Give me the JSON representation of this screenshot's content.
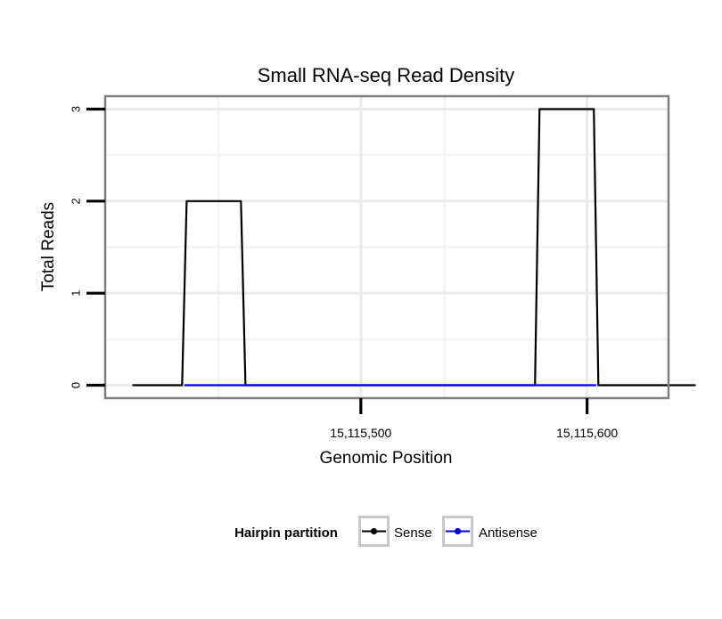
{
  "chart_data": {
    "type": "line",
    "title": "Small RNA-seq Read Density",
    "xlabel": "Genomic Position",
    "ylabel": "Total Reads",
    "xlim": [
      15115387,
      15115636
    ],
    "ylim": [
      -0.14,
      3.14
    ],
    "x_ticks": [
      {
        "value": 15115500,
        "label": "15,115,500"
      },
      {
        "value": 15115600,
        "label": "15,115,600"
      }
    ],
    "y_ticks": [
      {
        "value": 0,
        "label": "0"
      },
      {
        "value": 1,
        "label": "1"
      },
      {
        "value": 2,
        "label": "2"
      },
      {
        "value": 3,
        "label": "3"
      }
    ],
    "x_minor_gridlines": [
      15115437,
      15115537,
      15115637
    ],
    "y_minor_gridlines": [
      0.5,
      1.5,
      2.5
    ],
    "grid": true,
    "legend": {
      "title": "Hairpin partition",
      "position": "bottom",
      "entries": [
        {
          "name": "Sense",
          "color": "#000000"
        },
        {
          "name": "Antisense",
          "color": "#0000ff"
        }
      ]
    },
    "series": [
      {
        "name": "Sense",
        "color": "#000000",
        "x": [
          15115399,
          15115421,
          15115423,
          15115447,
          15115449,
          15115577,
          15115579,
          15115603,
          15115605,
          15115648
        ],
        "y": [
          0,
          0,
          2,
          2,
          0,
          0,
          3,
          3,
          0,
          0
        ]
      },
      {
        "name": "Antisense",
        "color": "#0000ff",
        "x": [
          15115422,
          15115448,
          15115578,
          15115604
        ],
        "y": [
          0,
          0,
          0,
          0
        ]
      }
    ]
  }
}
